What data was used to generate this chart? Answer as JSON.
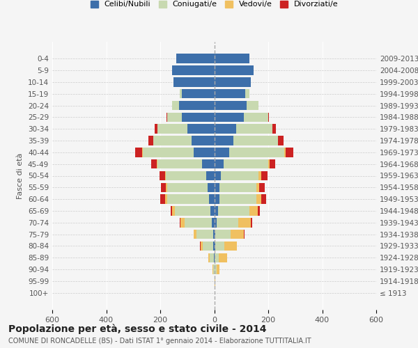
{
  "age_groups": [
    "100+",
    "95-99",
    "90-94",
    "85-89",
    "80-84",
    "75-79",
    "70-74",
    "65-69",
    "60-64",
    "55-59",
    "50-54",
    "45-49",
    "40-44",
    "35-39",
    "30-34",
    "25-29",
    "20-24",
    "15-19",
    "10-14",
    "5-9",
    "0-4"
  ],
  "birth_years": [
    "≤ 1913",
    "1914-1918",
    "1919-1923",
    "1924-1928",
    "1929-1933",
    "1934-1938",
    "1939-1943",
    "1944-1948",
    "1949-1953",
    "1954-1958",
    "1959-1963",
    "1964-1968",
    "1969-1973",
    "1974-1978",
    "1979-1983",
    "1984-1988",
    "1989-1993",
    "1994-1998",
    "1999-2003",
    "2004-2008",
    "2009-2013"
  ],
  "male": {
    "celibe": [
      0,
      0,
      0,
      2,
      3,
      5,
      10,
      15,
      20,
      25,
      30,
      45,
      75,
      85,
      100,
      120,
      130,
      120,
      150,
      155,
      140
    ],
    "coniugato": [
      0,
      0,
      5,
      15,
      40,
      60,
      100,
      130,
      155,
      150,
      150,
      165,
      190,
      140,
      110,
      55,
      25,
      8,
      0,
      0,
      0
    ],
    "vedovo": [
      0,
      0,
      2,
      5,
      8,
      10,
      15,
      12,
      8,
      5,
      3,
      2,
      1,
      1,
      0,
      0,
      0,
      0,
      0,
      0,
      0
    ],
    "divorziato": [
      0,
      0,
      0,
      0,
      2,
      2,
      3,
      4,
      18,
      18,
      20,
      22,
      28,
      18,
      10,
      2,
      0,
      0,
      0,
      0,
      0
    ]
  },
  "female": {
    "nubile": [
      0,
      0,
      0,
      2,
      3,
      5,
      10,
      15,
      20,
      20,
      25,
      35,
      55,
      70,
      80,
      110,
      120,
      115,
      135,
      145,
      130
    ],
    "coniugata": [
      0,
      2,
      8,
      15,
      35,
      55,
      80,
      115,
      135,
      135,
      140,
      165,
      205,
      165,
      135,
      90,
      45,
      15,
      0,
      0,
      0
    ],
    "vedova": [
      0,
      2,
      12,
      30,
      45,
      50,
      45,
      30,
      20,
      12,
      8,
      5,
      4,
      2,
      1,
      0,
      0,
      0,
      0,
      0,
      0
    ],
    "divorziata": [
      0,
      0,
      0,
      0,
      2,
      3,
      5,
      8,
      18,
      20,
      25,
      22,
      30,
      20,
      12,
      3,
      0,
      0,
      0,
      0,
      0
    ]
  },
  "colors": {
    "celibe": "#3d6faa",
    "coniugato": "#c8d9b0",
    "vedovo": "#f0c060",
    "divorziato": "#cc2222"
  },
  "xlim": 600,
  "title": "Popolazione per età, sesso e stato civile - 2014",
  "subtitle": "COMUNE DI RONCADELLE (BS) - Dati ISTAT 1° gennaio 2014 - Elaborazione TUTTITALIA.IT",
  "ylabel": "Fasce di età",
  "legend_labels": [
    "Celibi/Nubili",
    "Coniugati/e",
    "Vedovi/e",
    "Divorziati/e"
  ],
  "bg_color": "#f5f5f5"
}
